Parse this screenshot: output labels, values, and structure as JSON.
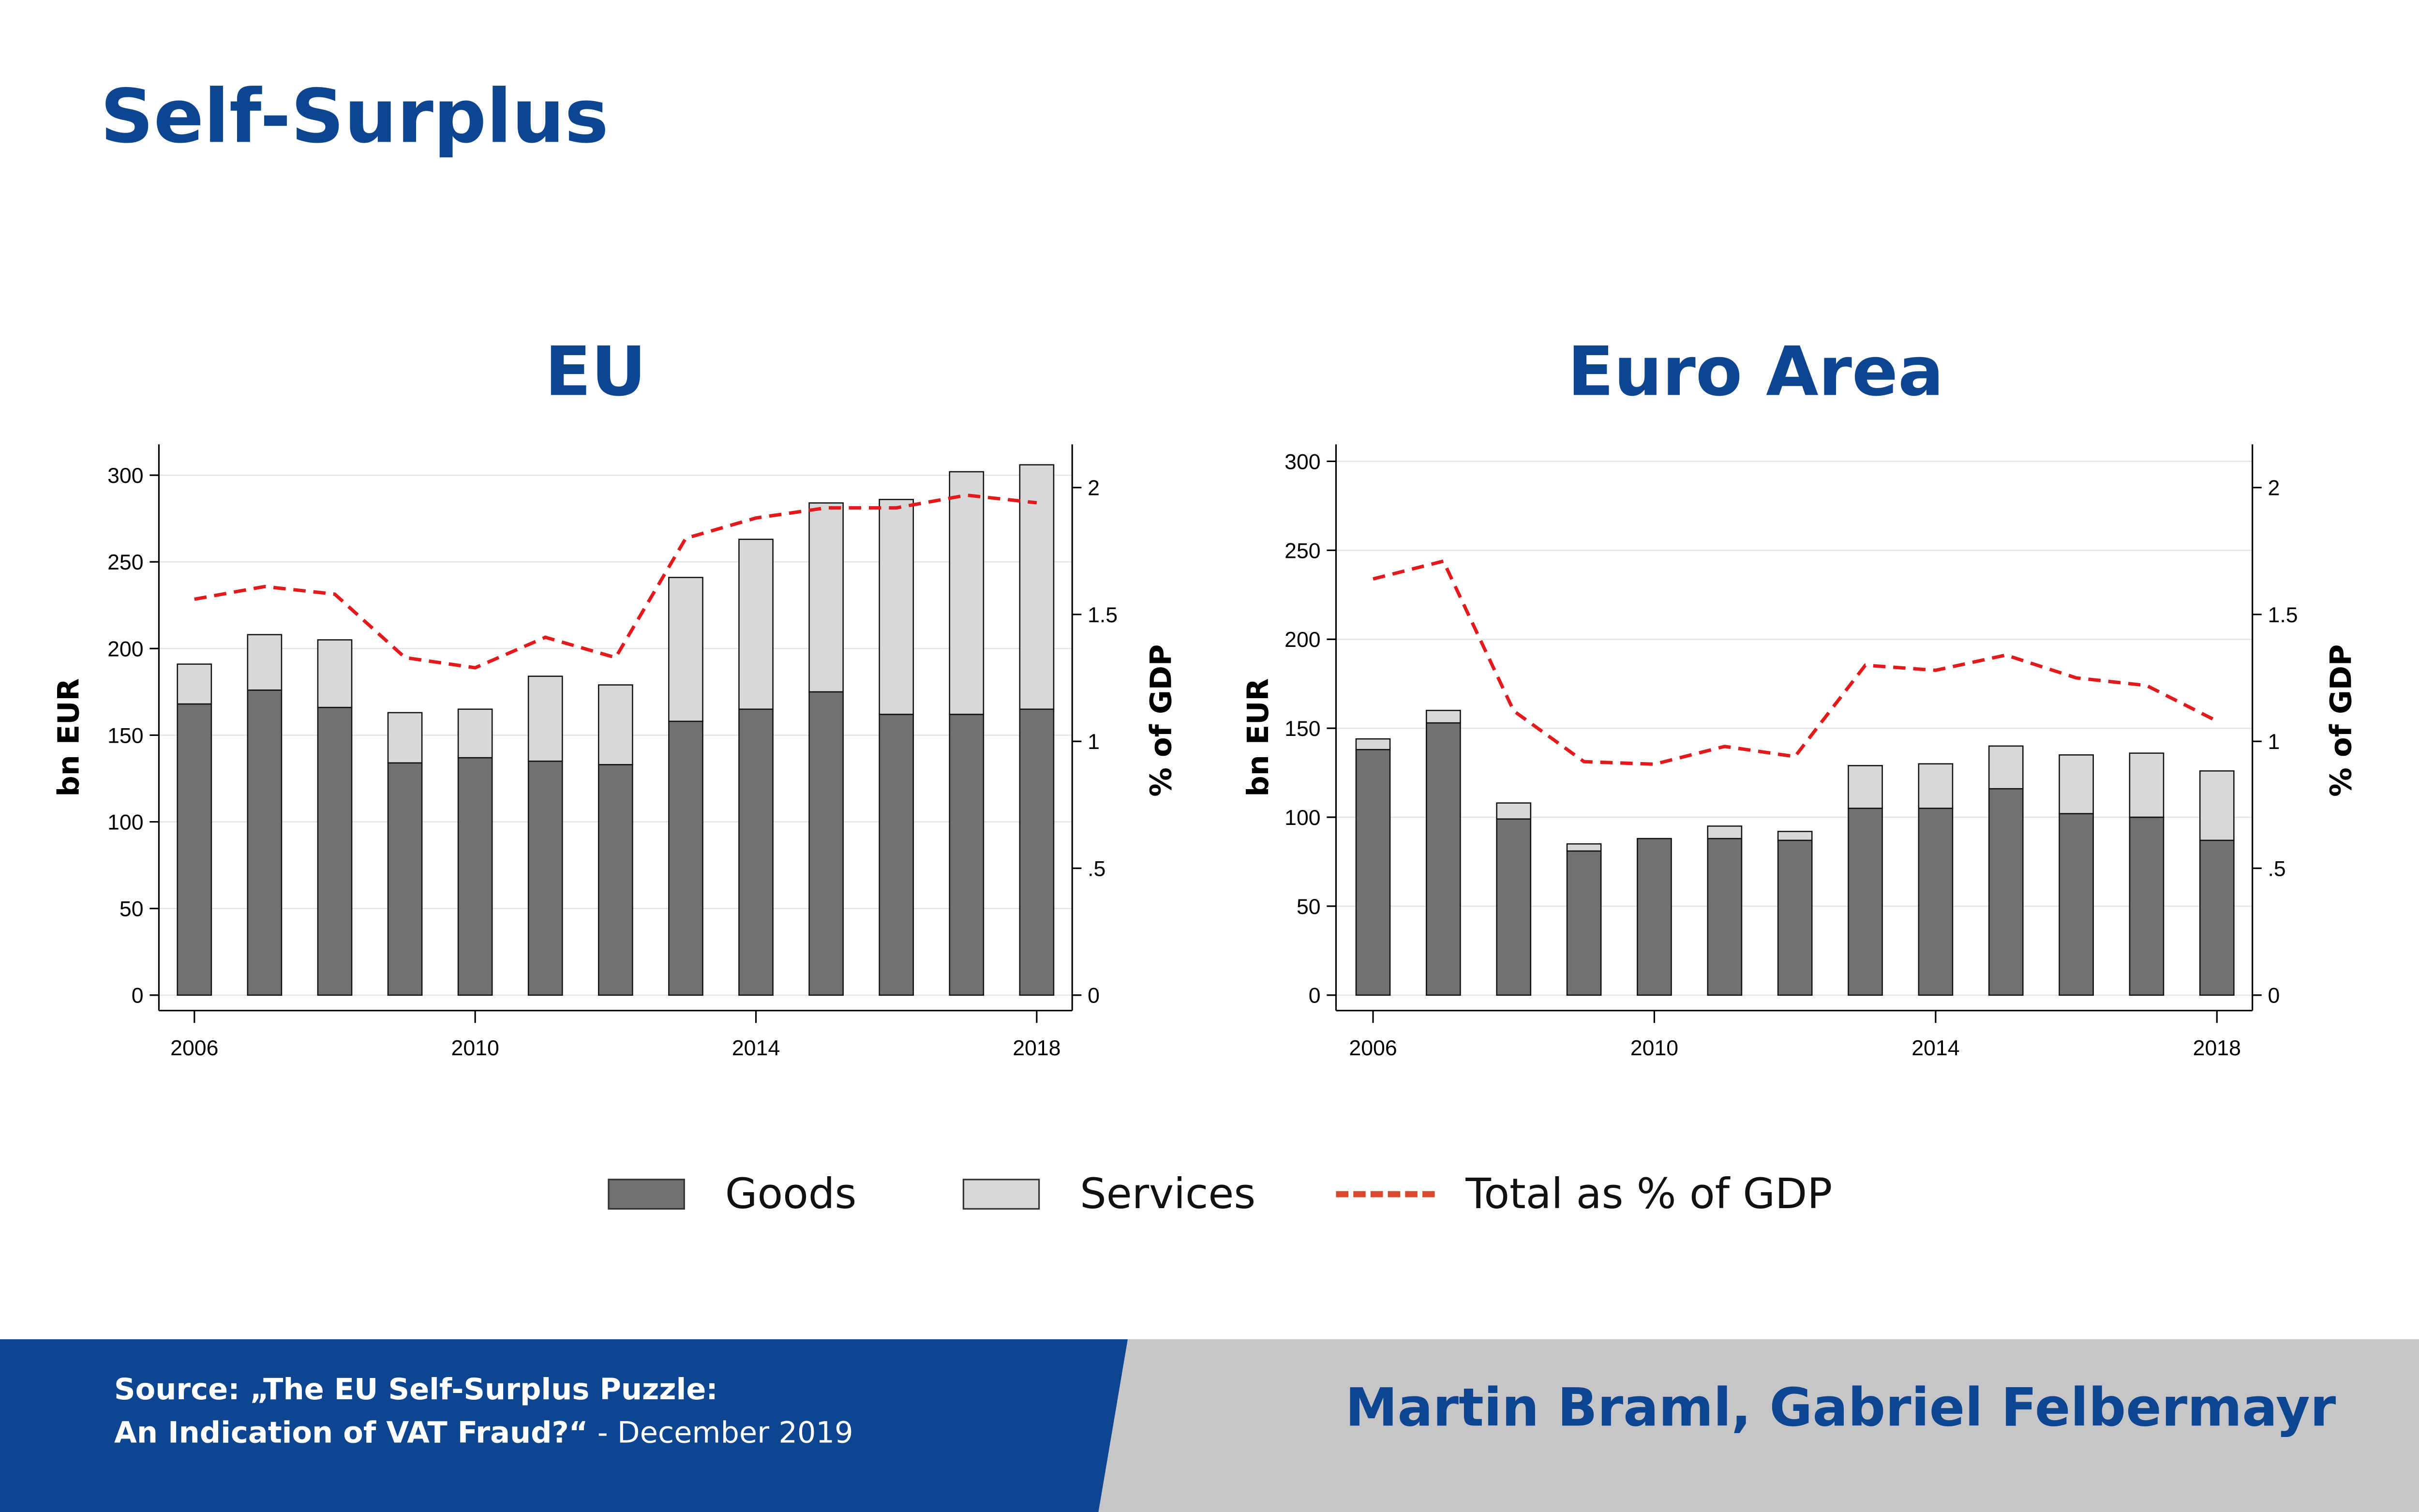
{
  "title": "Self-Surplus",
  "legend": {
    "goods": "Goods",
    "services": "Services",
    "total": "Total as % of GDP"
  },
  "colors": {
    "goods": "#717171",
    "services": "#d8d8d8",
    "line": "#e31a1c",
    "brand": "#0d4590",
    "footer_grey": "#c6c5c7"
  },
  "footer": {
    "source_line1": "Source:  „The EU Self-Surplus Puzzle:",
    "source_line2_bold": "An Indication of VAT Fraud?“",
    "source_line2_rest": " - December 2019",
    "authors": "Martin Braml, Gabriel Felbermayr"
  },
  "chart_data": [
    {
      "type": "bar",
      "title": "EU",
      "ylabel": "bn EUR",
      "y2label": "% of GDP",
      "ylim": [
        0,
        300
      ],
      "y2lim": [
        0,
        2
      ],
      "yticks": [
        "0",
        "50",
        "100",
        "150",
        "200",
        "250",
        "300"
      ],
      "y2ticks": [
        "0",
        ".5",
        "1",
        "1.5",
        "2"
      ],
      "xticks": [
        "2006",
        "2010",
        "2014",
        "2018"
      ],
      "x": [
        2006,
        2007,
        2008,
        2009,
        2010,
        2011,
        2012,
        2013,
        2014,
        2015,
        2016,
        2017,
        2018
      ],
      "series": [
        {
          "name": "Goods",
          "values": [
            168,
            176,
            166,
            134,
            137,
            135,
            133,
            158,
            165,
            175,
            162,
            162,
            165
          ]
        },
        {
          "name": "Services",
          "values": [
            23,
            32,
            39,
            29,
            28,
            49,
            46,
            83,
            98,
            109,
            124,
            140,
            141
          ]
        },
        {
          "name": "Total as % of GDP",
          "axis": "right",
          "values": [
            1.56,
            1.61,
            1.58,
            1.33,
            1.29,
            1.41,
            1.33,
            1.8,
            1.88,
            1.92,
            1.92,
            1.97,
            1.94
          ]
        }
      ]
    },
    {
      "type": "bar",
      "title": "Euro Area",
      "ylabel": "bn EUR",
      "y2label": "% of GDP",
      "ylim": [
        0,
        300
      ],
      "y2lim": [
        0,
        2
      ],
      "yticks": [
        "0",
        "50",
        "100",
        "150",
        "200",
        "250",
        "300"
      ],
      "y2ticks": [
        "0",
        ".5",
        "1",
        "1.5",
        "2"
      ],
      "xticks": [
        "2006",
        "2010",
        "2014",
        "2018"
      ],
      "x": [
        2006,
        2007,
        2008,
        2009,
        2010,
        2011,
        2012,
        2013,
        2014,
        2015,
        2016,
        2017,
        2018
      ],
      "series": [
        {
          "name": "Goods",
          "values": [
            138,
            153,
            99,
            81,
            88,
            88,
            87,
            105,
            105,
            116,
            102,
            100,
            87
          ]
        },
        {
          "name": "Services",
          "values": [
            6,
            7,
            9,
            4,
            0,
            7,
            5,
            24,
            25,
            24,
            33,
            36,
            39
          ]
        },
        {
          "name": "Total as % of GDP",
          "axis": "right",
          "values": [
            1.64,
            1.71,
            1.12,
            0.92,
            0.91,
            0.98,
            0.94,
            1.3,
            1.28,
            1.34,
            1.25,
            1.22,
            1.08
          ]
        }
      ]
    }
  ]
}
